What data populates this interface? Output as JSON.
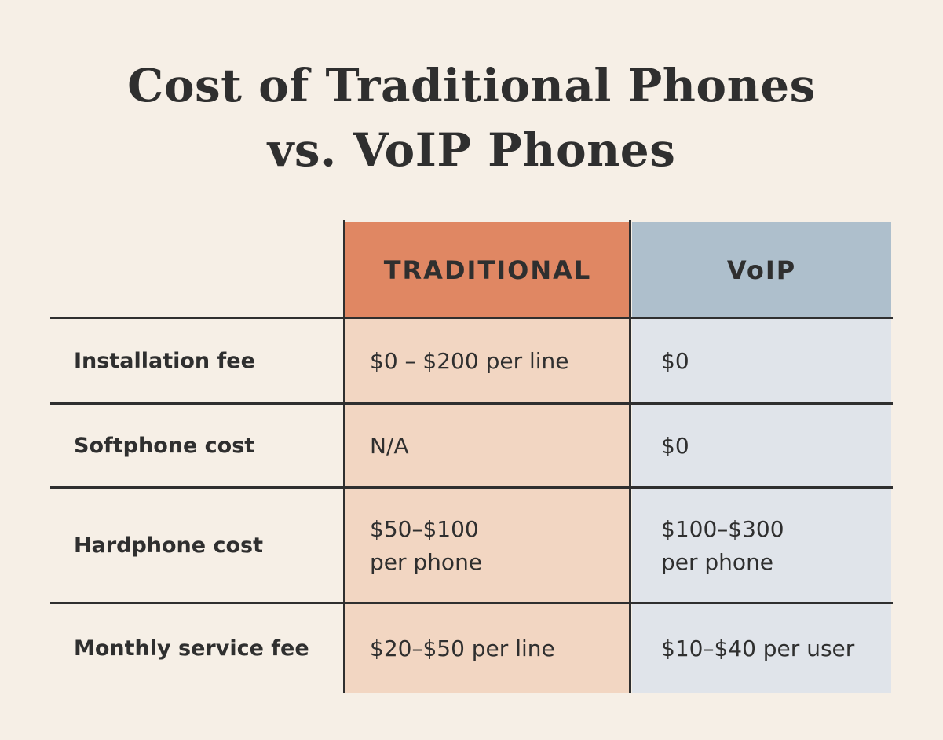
{
  "title": {
    "line1": "Cost of Traditional Phones",
    "line2": "vs. VoIP Phones"
  },
  "columns": {
    "traditional": "TRADITIONAL",
    "voip": "VoIP"
  },
  "rows": [
    {
      "label": "Installation fee",
      "traditional": "$0 – $200 per line",
      "voip": "$0"
    },
    {
      "label": "Softphone cost",
      "traditional": "N/A",
      "voip": "$0"
    },
    {
      "label": "Hardphone cost",
      "traditional": [
        "$50–$100",
        "per phone"
      ],
      "voip": [
        "$100–$300",
        "per phone"
      ]
    },
    {
      "label": "Monthly service fee",
      "traditional": "$20–$50 per line",
      "voip": "$10–$40 per user"
    }
  ],
  "colors": {
    "background": "#f6efe6",
    "traditional_header": "#e08763",
    "traditional_body": "#f2d6c2",
    "voip_header": "#aebfcc",
    "voip_body": "#e0e4ea",
    "text": "#2f2f2f"
  }
}
